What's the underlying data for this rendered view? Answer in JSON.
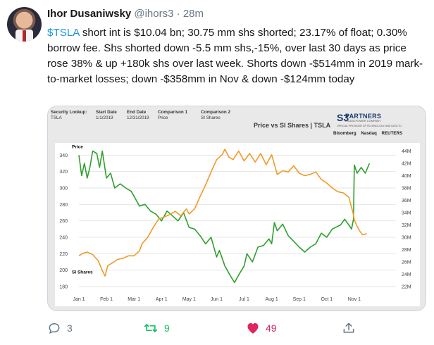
{
  "user": {
    "name": "Ihor Dusaniwsky",
    "handle": "@ihors3",
    "separator": "·",
    "time": "28m"
  },
  "tweet": {
    "cashtag": "$TSLA",
    "text": " short int is $10.04 bn; 30.75 mm shs shorted; 23.17% of float; 0.30% borrow fee. Shs shorted down -5.5 mm shs,-15%, over last 30 days as price rose 38% & up +180k shs over last week. Shorts down -$514mm in 2019 mark-to-market losses; down -$358mm in Nov & down -$124mm today"
  },
  "card": {
    "meta": [
      {
        "label": "Security Lookup:",
        "value": "TSLA"
      },
      {
        "label": "Start Date",
        "value": "1/1/2019"
      },
      {
        "label": "End Date",
        "value": "12/31/2019"
      },
      {
        "label": "Comparison 1",
        "value": "Price"
      },
      {
        "label": "Comparison 2",
        "value": "SI Shares"
      }
    ],
    "title": "Price vs SI Shares | TSLA",
    "logo": {
      "s3": "S3",
      "partners": "PARTNERS",
      "tagline": "A DATA POWER COMPANY",
      "provider": "OFFICIAL PROVIDER OF TECHNOLOGY AND DATA TO"
    },
    "brands": [
      "Bloomberg",
      "Nasdaq",
      "REUTERS"
    ]
  },
  "chart_data": {
    "type": "line",
    "title": "Price vs SI Shares | TSLA",
    "x_ticks": [
      "Jan 1",
      "Feb 1",
      "Mar 1",
      "Apr 1",
      "May 1",
      "Jun 1",
      "Jul 1",
      "Aug 1",
      "Sep 1",
      "Oct 1",
      "Nov 1"
    ],
    "x_range": [
      0,
      11
    ],
    "left_axis": {
      "ticks": [
        "180",
        "200",
        "220",
        "240",
        "260",
        "280",
        "300",
        "320",
        "340"
      ],
      "range": [
        180,
        348
      ]
    },
    "right_axis": {
      "ticks": [
        "22M",
        "24M",
        "26M",
        "28M",
        "30M",
        "32M",
        "34M",
        "36M",
        "38M",
        "40M",
        "42M",
        "44M"
      ],
      "range": [
        22,
        44.4
      ]
    },
    "series": [
      {
        "name": "Price",
        "color": "#2fa02f",
        "axis": "left",
        "points": [
          [
            0,
            340
          ],
          [
            0.1,
            315
          ],
          [
            0.2,
            330
          ],
          [
            0.3,
            312
          ],
          [
            0.4,
            325
          ],
          [
            0.5,
            345
          ],
          [
            0.65,
            342
          ],
          [
            0.75,
            325
          ],
          [
            0.85,
            345
          ],
          [
            1.0,
            312
          ],
          [
            1.15,
            318
          ],
          [
            1.3,
            300
          ],
          [
            1.5,
            305
          ],
          [
            1.7,
            300
          ],
          [
            1.9,
            296
          ],
          [
            2.0,
            290
          ],
          [
            2.2,
            278
          ],
          [
            2.4,
            280
          ],
          [
            2.6,
            272
          ],
          [
            2.8,
            268
          ],
          [
            3.0,
            260
          ],
          [
            3.2,
            272
          ],
          [
            3.4,
            266
          ],
          [
            3.6,
            260
          ],
          [
            3.8,
            270
          ],
          [
            4.0,
            252
          ],
          [
            4.2,
            250
          ],
          [
            4.4,
            242
          ],
          [
            4.6,
            232
          ],
          [
            4.8,
            240
          ],
          [
            5.0,
            216
          ],
          [
            5.1,
            224
          ],
          [
            5.3,
            205
          ],
          [
            5.5,
            193
          ],
          [
            5.65,
            185
          ],
          [
            5.8,
            194
          ],
          [
            6.0,
            205
          ],
          [
            6.1,
            220
          ],
          [
            6.3,
            210
          ],
          [
            6.5,
            228
          ],
          [
            6.7,
            230
          ],
          [
            6.9,
            238
          ],
          [
            7.0,
            232
          ],
          [
            7.1,
            258
          ],
          [
            7.2,
            248
          ],
          [
            7.4,
            256
          ],
          [
            7.6,
            242
          ],
          [
            7.8,
            235
          ],
          [
            8.0,
            228
          ],
          [
            8.2,
            222
          ],
          [
            8.4,
            228
          ],
          [
            8.6,
            232
          ],
          [
            8.8,
            245
          ],
          [
            9.0,
            240
          ],
          [
            9.2,
            250
          ],
          [
            9.5,
            255
          ],
          [
            9.65,
            262
          ],
          [
            9.8,
            255
          ],
          [
            9.9,
            250
          ],
          [
            9.97,
            262
          ],
          [
            10.0,
            328
          ],
          [
            10.1,
            318
          ],
          [
            10.25,
            325
          ],
          [
            10.4,
            318
          ],
          [
            10.55,
            330
          ]
        ]
      },
      {
        "name": "SI Shares",
        "color": "#f09a28",
        "axis": "right",
        "points": [
          [
            0,
            27.0
          ],
          [
            0.15,
            27.4
          ],
          [
            0.3,
            27.6
          ],
          [
            0.5,
            27.2
          ],
          [
            0.7,
            26.2
          ],
          [
            0.85,
            24.6
          ],
          [
            0.95,
            23.7
          ],
          [
            1.05,
            25.4
          ],
          [
            1.2,
            25.8
          ],
          [
            1.4,
            26.4
          ],
          [
            1.6,
            26.6
          ],
          [
            1.8,
            27.0
          ],
          [
            2.0,
            27.0
          ],
          [
            2.2,
            27.8
          ],
          [
            2.3,
            29.0
          ],
          [
            2.5,
            30.0
          ],
          [
            2.7,
            31.6
          ],
          [
            2.9,
            33.0
          ],
          [
            3.1,
            33.3
          ],
          [
            3.3,
            33.7
          ],
          [
            3.5,
            34.2
          ],
          [
            3.7,
            33.5
          ],
          [
            3.9,
            34.6
          ],
          [
            4.0,
            33.8
          ],
          [
            4.2,
            34.6
          ],
          [
            4.4,
            36.6
          ],
          [
            4.6,
            38.5
          ],
          [
            4.8,
            40.6
          ],
          [
            5.0,
            42.6
          ],
          [
            5.2,
            43.4
          ],
          [
            5.3,
            44.3
          ],
          [
            5.45,
            43.0
          ],
          [
            5.6,
            42.6
          ],
          [
            5.8,
            44.0
          ],
          [
            6.0,
            42.4
          ],
          [
            6.2,
            43.6
          ],
          [
            6.4,
            42.2
          ],
          [
            6.6,
            43.6
          ],
          [
            6.8,
            41.8
          ],
          [
            7.0,
            43.4
          ],
          [
            7.2,
            40.2
          ],
          [
            7.4,
            40.8
          ],
          [
            7.6,
            40.6
          ],
          [
            7.8,
            41.6
          ],
          [
            8.0,
            40.4
          ],
          [
            8.2,
            40.0
          ],
          [
            8.4,
            40.2
          ],
          [
            8.6,
            40.6
          ],
          [
            8.8,
            39.4
          ],
          [
            9.0,
            38.8
          ],
          [
            9.2,
            38.0
          ],
          [
            9.4,
            37.4
          ],
          [
            9.6,
            37.2
          ],
          [
            9.8,
            36.5
          ],
          [
            9.95,
            34.0
          ],
          [
            10.0,
            32.8
          ],
          [
            10.1,
            31.8
          ],
          [
            10.2,
            31.0
          ],
          [
            10.3,
            30.4
          ],
          [
            10.45,
            30.6
          ]
        ]
      }
    ],
    "annotations": [
      "Price",
      "SI Shares"
    ]
  },
  "actions": {
    "reply_count": "3",
    "retweet_count": "9",
    "like_count": "49"
  },
  "colors": {
    "link": "#1b95e0",
    "retweet": "#17bf63",
    "like": "#e0245e",
    "muted": "#657786"
  }
}
